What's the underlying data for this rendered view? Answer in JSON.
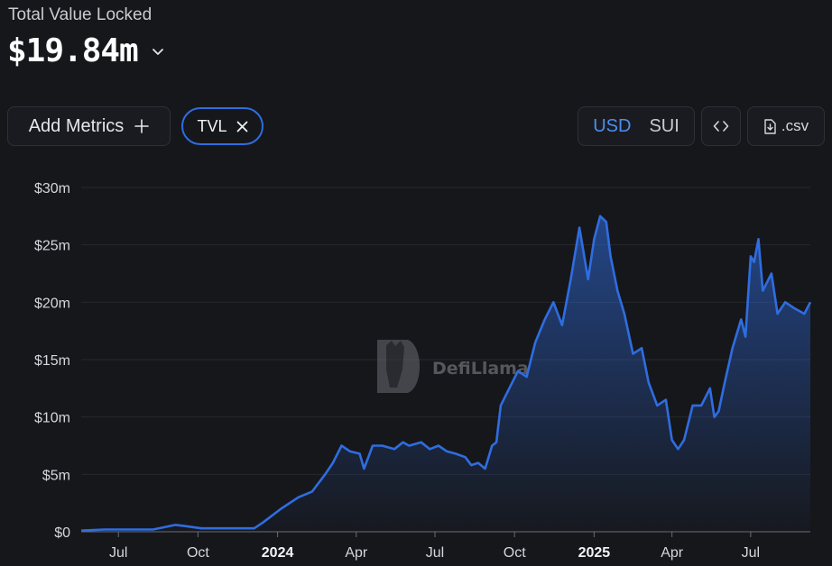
{
  "header": {
    "title": "Total Value Locked",
    "value": "$19.84m"
  },
  "controls": {
    "add_metrics_label": "Add Metrics",
    "metric_pill": "TVL",
    "currency_options": [
      "USD",
      "SUI"
    ],
    "currency_selected": "USD",
    "csv_label": ".csv"
  },
  "watermark": "DefiLlama",
  "colors": {
    "line": "#2f6de0",
    "accent": "#4b8ff0",
    "background": "#16171b"
  },
  "icons": {
    "add": "plus-icon",
    "remove": "close-icon",
    "dropdown": "chevron-down-icon",
    "embed": "code-icon",
    "download": "download-icon"
  },
  "chart_data": {
    "type": "area",
    "title": "",
    "xlabel": "",
    "ylabel": "",
    "ylim": [
      0,
      30
    ],
    "y_ticks": [
      "$0",
      "$5m",
      "$10m",
      "$15m",
      "$20m",
      "$25m",
      "$30m"
    ],
    "y_tick_values": [
      0,
      5,
      10,
      15,
      20,
      25,
      30
    ],
    "x_ticks": [
      "Jul",
      "Oct",
      "2024",
      "Apr",
      "Jul",
      "Oct",
      "2025",
      "Apr",
      "Jul"
    ],
    "x_tick_dates": [
      "2023-07-01",
      "2023-10-01",
      "2024-01-01",
      "2024-04-01",
      "2024-07-01",
      "2024-10-01",
      "2025-01-01",
      "2025-04-01",
      "2025-07-01"
    ],
    "x_range": [
      "2023-05-19",
      "2025-09-08"
    ],
    "grid": "horizontal",
    "series": [
      {
        "x": [
          "2023-05-19",
          "2023-06-15",
          "2023-07-15",
          "2023-08-10",
          "2023-09-05",
          "2023-09-15",
          "2023-10-05",
          "2023-11-01",
          "2023-12-05",
          "2023-12-15",
          "2024-01-05",
          "2024-01-25",
          "2024-02-10",
          "2024-02-25",
          "2024-03-05",
          "2024-03-15",
          "2024-03-25",
          "2024-04-05",
          "2024-04-10",
          "2024-04-20",
          "2024-05-01",
          "2024-05-15",
          "2024-05-25",
          "2024-06-01",
          "2024-06-15",
          "2024-06-25",
          "2024-07-05",
          "2024-07-15",
          "2024-07-25",
          "2024-08-05",
          "2024-08-12",
          "2024-08-20",
          "2024-08-28",
          "2024-09-05",
          "2024-09-10",
          "2024-09-15",
          "2024-09-25",
          "2024-10-05",
          "2024-10-15",
          "2024-10-25",
          "2024-11-05",
          "2024-11-15",
          "2024-11-25",
          "2024-12-05",
          "2024-12-15",
          "2024-12-25",
          "2025-01-01",
          "2025-01-08",
          "2025-01-15",
          "2025-01-20",
          "2025-01-28",
          "2025-02-05",
          "2025-02-15",
          "2025-02-25",
          "2025-03-05",
          "2025-03-15",
          "2025-03-25",
          "2025-04-01",
          "2025-04-08",
          "2025-04-15",
          "2025-04-25",
          "2025-05-05",
          "2025-05-15",
          "2025-05-20",
          "2025-05-25",
          "2025-06-01",
          "2025-06-10",
          "2025-06-20",
          "2025-06-25",
          "2025-07-01",
          "2025-07-05",
          "2025-07-10",
          "2025-07-15",
          "2025-07-25",
          "2025-08-01",
          "2025-08-10",
          "2025-08-20",
          "2025-09-01",
          "2025-09-08"
        ],
        "y": [
          0.1,
          0.2,
          0.2,
          0.2,
          0.6,
          0.5,
          0.3,
          0.3,
          0.3,
          0.8,
          2.0,
          3.0,
          3.5,
          5.0,
          6.0,
          7.5,
          7.0,
          6.8,
          5.5,
          7.5,
          7.5,
          7.2,
          7.8,
          7.5,
          7.8,
          7.2,
          7.5,
          7.0,
          6.8,
          6.5,
          5.8,
          6.0,
          5.5,
          7.5,
          7.8,
          11.0,
          12.5,
          14.0,
          13.5,
          16.5,
          18.5,
          20.0,
          18.0,
          22.0,
          26.5,
          22.0,
          25.5,
          27.5,
          27.0,
          24.0,
          21.0,
          19.0,
          15.5,
          16.0,
          13.0,
          11.0,
          11.5,
          8.0,
          7.2,
          8.0,
          11.0,
          11.0,
          12.5,
          10.0,
          10.5,
          13.0,
          16.0,
          18.5,
          17.0,
          24.0,
          23.5,
          25.5,
          21.0,
          22.5,
          19.0,
          20.0,
          19.5,
          19.0,
          20.0
        ]
      }
    ]
  }
}
